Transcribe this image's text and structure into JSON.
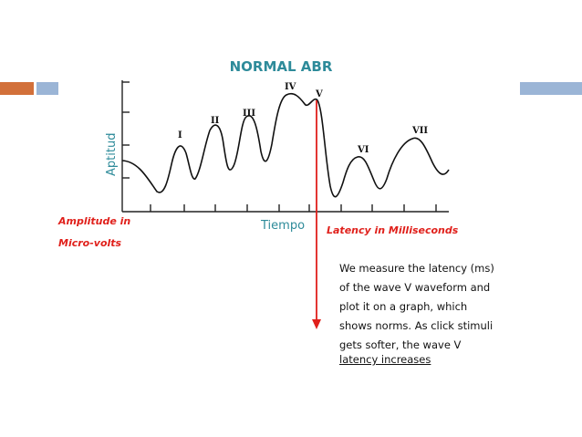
{
  "title": "NORMAL ABR",
  "waves": [
    "I",
    "II",
    "III",
    "IV",
    "V",
    "VI",
    "VII"
  ],
  "y_axis_label": "Aptitud",
  "x_axis_label": "Tiempo",
  "amplitude_note": [
    "Amplitude in",
    "Micro-volts"
  ],
  "latency_note": "Latency in Milliseconds",
  "description_lines": [
    "We measure the latency (ms)",
    "of the wave V waveform and",
    "plot it on a graph, which",
    "shows norms. As click stimuli",
    "gets softer, the wave V",
    "latency increases"
  ],
  "colors": {
    "title": "#2e8b9a",
    "axis_labels": "#2e8b9a",
    "notes": "#e0201b",
    "marker": "#e0201b",
    "deco_orange": "#d2703a",
    "deco_blue": "#9bb5d6"
  }
}
